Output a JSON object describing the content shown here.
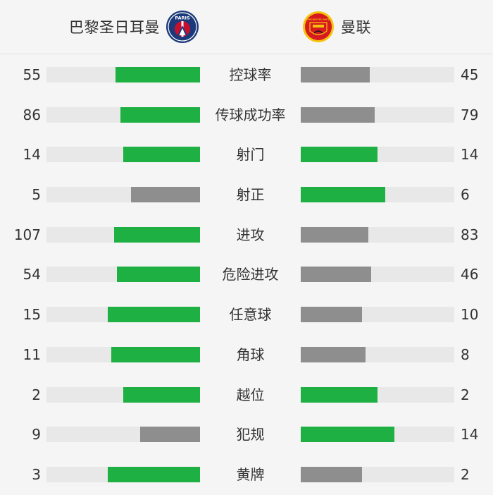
{
  "colors": {
    "lead": "#1fb043",
    "trail": "#8e8e8e",
    "track": "#e8e8e8"
  },
  "teams": {
    "home": {
      "name": "巴黎圣日耳曼",
      "logo_text": "PARIS",
      "logo_icon": "psg-crest-icon"
    },
    "away": {
      "name": "曼联",
      "logo_text": "MANCHESTER UNITED",
      "logo_icon": "man-utd-crest-icon"
    }
  },
  "stats": [
    {
      "label": "控球率",
      "home": 55,
      "away": 45,
      "home_fill": 0.55,
      "away_fill": 0.45,
      "home_color": "lead",
      "away_color": "trail"
    },
    {
      "label": "传球成功率",
      "home": 86,
      "away": 79,
      "home_fill": 0.52,
      "away_fill": 0.48,
      "home_color": "lead",
      "away_color": "trail"
    },
    {
      "label": "射门",
      "home": 14,
      "away": 14,
      "home_fill": 0.5,
      "away_fill": 0.5,
      "home_color": "lead",
      "away_color": "lead"
    },
    {
      "label": "射正",
      "home": 5,
      "away": 6,
      "home_fill": 0.45,
      "away_fill": 0.55,
      "home_color": "trail",
      "away_color": "lead"
    },
    {
      "label": "进攻",
      "home": 107,
      "away": 83,
      "home_fill": 0.56,
      "away_fill": 0.44,
      "home_color": "lead",
      "away_color": "trail"
    },
    {
      "label": "危险进攻",
      "home": 54,
      "away": 46,
      "home_fill": 0.54,
      "away_fill": 0.46,
      "home_color": "lead",
      "away_color": "trail"
    },
    {
      "label": "任意球",
      "home": 15,
      "away": 10,
      "home_fill": 0.6,
      "away_fill": 0.4,
      "home_color": "lead",
      "away_color": "trail"
    },
    {
      "label": "角球",
      "home": 11,
      "away": 8,
      "home_fill": 0.58,
      "away_fill": 0.42,
      "home_color": "lead",
      "away_color": "trail"
    },
    {
      "label": "越位",
      "home": 2,
      "away": 2,
      "home_fill": 0.5,
      "away_fill": 0.5,
      "home_color": "lead",
      "away_color": "lead"
    },
    {
      "label": "犯规",
      "home": 9,
      "away": 14,
      "home_fill": 0.39,
      "away_fill": 0.61,
      "home_color": "trail",
      "away_color": "lead"
    },
    {
      "label": "黄牌",
      "home": 3,
      "away": 2,
      "home_fill": 0.6,
      "away_fill": 0.4,
      "home_color": "lead",
      "away_color": "trail"
    }
  ]
}
